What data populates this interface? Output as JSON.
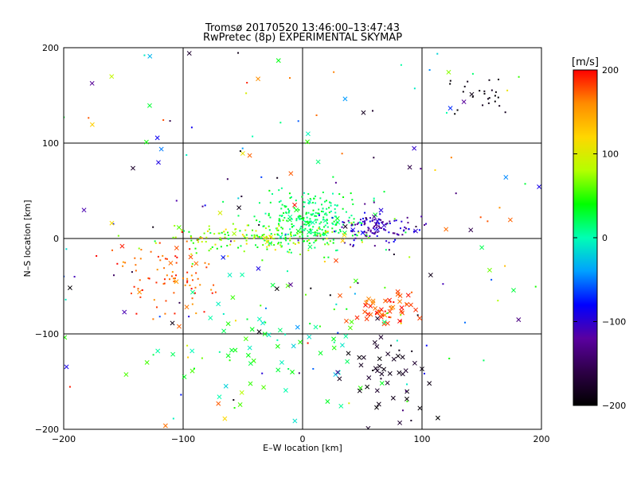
{
  "chart_data": {
    "type": "scatter",
    "title": "Tromsø 20170520 13:46:00–13:47:43",
    "subtitle": "RwPretec (8p) EXPERIMENTAL SKYMAP",
    "xlabel": "E–W location [km]",
    "ylabel": "N–S location [km]",
    "xlim": [
      -200,
      200
    ],
    "ylim": [
      -200,
      200
    ],
    "xticks": [
      "−200",
      "−100",
      "0",
      "100",
      "200"
    ],
    "yticks": [
      "−200",
      "−100",
      "0",
      "100",
      "200"
    ],
    "grid": true,
    "colorbar": {
      "label": "[m/s]",
      "range": [
        -200,
        200
      ],
      "ticks": [
        "200",
        "100",
        "0",
        "−100",
        "−200"
      ],
      "colormap": [
        "#000000",
        "#2d0046",
        "#5a00a0",
        "#0000ff",
        "#00a0ff",
        "#00ffb4",
        "#00ff00",
        "#b4ff00",
        "#ffd700",
        "#ff8c00",
        "#ff0000"
      ]
    },
    "markers": {
      "small": "dot",
      "large": "x"
    },
    "clusters": [
      {
        "center": [
          10,
          20
        ],
        "spread": [
          22,
          16
        ],
        "count": 260,
        "velocity": [
          0,
          40
        ],
        "marker": "small"
      },
      {
        "center": [
          60,
          10
        ],
        "spread": [
          18,
          8
        ],
        "count": 120,
        "velocity": [
          -140,
          -80
        ],
        "marker": "small"
      },
      {
        "center": [
          -40,
          0
        ],
        "spread": [
          40,
          8
        ],
        "count": 170,
        "velocity": [
          20,
          120
        ],
        "marker": "small"
      },
      {
        "center": [
          -115,
          -40
        ],
        "spread": [
          22,
          20
        ],
        "count": 90,
        "velocity": [
          150,
          200
        ],
        "marker": "small"
      },
      {
        "center": [
          68,
          -75
        ],
        "spread": [
          14,
          9
        ],
        "count": 55,
        "velocity": [
          160,
          200
        ],
        "marker": "large"
      },
      {
        "center": [
          150,
          150
        ],
        "spread": [
          14,
          10
        ],
        "count": 25,
        "velocity": [
          -200,
          -180
        ],
        "marker": "small"
      },
      {
        "center": [
          -30,
          -110
        ],
        "spread": [
          45,
          40
        ],
        "count": 80,
        "velocity": [
          -20,
          60
        ],
        "marker": "large"
      },
      {
        "center": [
          70,
          -150
        ],
        "spread": [
          18,
          30
        ],
        "count": 50,
        "velocity": [
          -200,
          -170
        ],
        "marker": "large"
      },
      {
        "center": [
          0,
          0
        ],
        "spread": [
          160,
          170
        ],
        "count": 300,
        "velocity": [
          -200,
          200
        ],
        "marker": "mixed"
      }
    ]
  }
}
